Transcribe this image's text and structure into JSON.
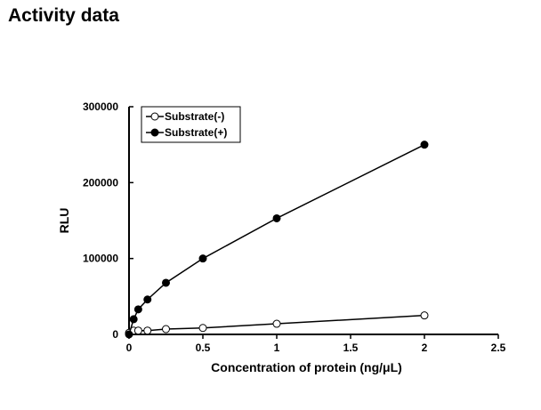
{
  "page_title": "Activity data",
  "chart_data": {
    "type": "line",
    "xlabel": "Concentration of protein (ng/μL)",
    "ylabel": "RLU",
    "xlim": [
      0,
      2.5
    ],
    "ylim": [
      0,
      300000
    ],
    "xticks": [
      0,
      0.5,
      1,
      1.5,
      2,
      2.5
    ],
    "xtick_labels": [
      "0",
      "0.5",
      "1",
      "1.5",
      "2",
      "2.5"
    ],
    "yticks": [
      0,
      100000,
      200000,
      300000
    ],
    "ytick_labels": [
      "0",
      "100000",
      "200000",
      "300000"
    ],
    "legend_position": "top-left",
    "series": [
      {
        "name": "Substrate(-)",
        "marker": "open-circle",
        "x": [
          0,
          0.03125,
          0.0625,
          0.125,
          0.25,
          0.5,
          1,
          2
        ],
        "y": [
          2000,
          5000,
          5000,
          5000,
          7000,
          8500,
          14000,
          25000
        ]
      },
      {
        "name": "Substrate(+)",
        "marker": "filled-circle",
        "x": [
          0,
          0.03125,
          0.0625,
          0.125,
          0.25,
          0.5,
          1,
          2
        ],
        "y": [
          0,
          20000,
          33000,
          46000,
          68000,
          100000,
          153000,
          250000
        ]
      }
    ]
  }
}
